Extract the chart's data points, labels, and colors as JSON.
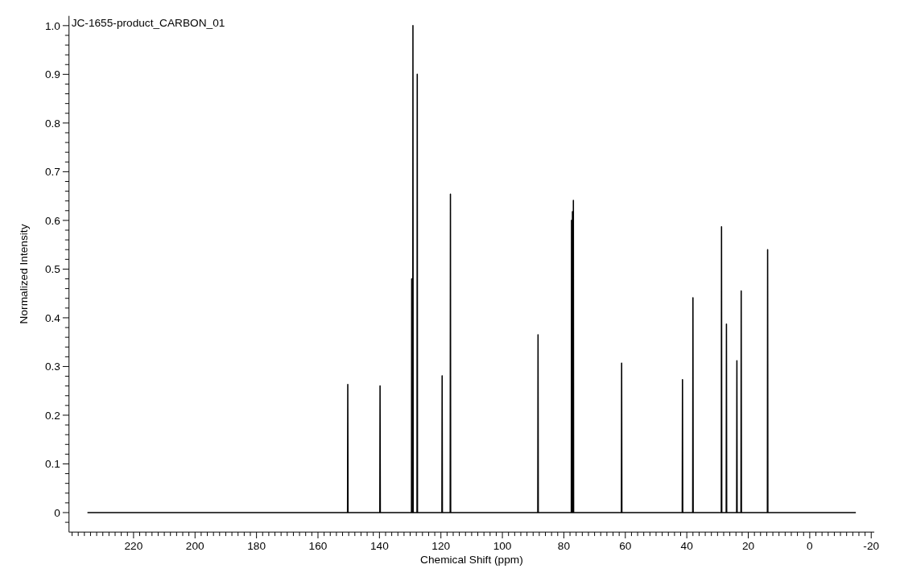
{
  "chart_data": {
    "type": "line",
    "title": "JC-1655-product_CARBON_01",
    "xlabel": "Chemical Shift (ppm)",
    "ylabel": "Normalized Intensity",
    "color": "#000000",
    "x": [
      235,
      150.38,
      150.3,
      150.22,
      139.88,
      139.8,
      139.72,
      129.58,
      129.5,
      129.42,
      129.18,
      129.1,
      129.02,
      127.78,
      127.7,
      127.62,
      119.68,
      119.6,
      119.52,
      116.98,
      116.9,
      116.82,
      88.48,
      88.4,
      88.32,
      77.58,
      77.5,
      77.42,
      77.28,
      77.2,
      77.12,
      76.98,
      76.9,
      76.82,
      61.28,
      61.2,
      61.12,
      41.48,
      41.4,
      41.32,
      38.08,
      38.0,
      37.92,
      28.78,
      28.7,
      28.62,
      27.18,
      27.1,
      27.02,
      23.78,
      23.7,
      23.62,
      22.38,
      22.3,
      22.22,
      13.78,
      13.7,
      13.62,
      -15
    ],
    "values": [
      0,
      0,
      0.263,
      0,
      0,
      0.26,
      0,
      0,
      0.48,
      0,
      0,
      1.0,
      0,
      0,
      0.9,
      0,
      0,
      0.281,
      0,
      0,
      0.654,
      0,
      0,
      0.365,
      0,
      0,
      0.6,
      0,
      0,
      0.618,
      0,
      0,
      0.641,
      0,
      0,
      0.307,
      0,
      0,
      0.273,
      0,
      0,
      0.441,
      0,
      0,
      0.587,
      0,
      0,
      0.387,
      0,
      0,
      0.312,
      0,
      0,
      0.455,
      0,
      0,
      0.54,
      0,
      0
    ],
    "xlim": [
      241,
      -21
    ],
    "xticks": [
      {
        "value": 240,
        "label": null
      },
      {
        "value": 238,
        "label": null
      },
      {
        "value": 236,
        "label": null
      },
      {
        "value": 234,
        "label": null
      },
      {
        "value": 232,
        "label": null
      },
      {
        "value": 230,
        "label": null
      },
      {
        "value": 228,
        "label": null
      },
      {
        "value": 226,
        "label": null
      },
      {
        "value": 224,
        "label": null
      },
      {
        "value": 222,
        "label": null
      },
      220,
      {
        "value": 218,
        "label": null
      },
      {
        "value": 216,
        "label": null
      },
      {
        "value": 214,
        "label": null
      },
      {
        "value": 212,
        "label": null
      },
      {
        "value": 210,
        "label": null
      },
      {
        "value": 208,
        "label": null
      },
      {
        "value": 206,
        "label": null
      },
      {
        "value": 204,
        "label": null
      },
      {
        "value": 202,
        "label": null
      },
      200,
      {
        "value": 198,
        "label": null
      },
      {
        "value": 196,
        "label": null
      },
      {
        "value": 194,
        "label": null
      },
      {
        "value": 192,
        "label": null
      },
      {
        "value": 190,
        "label": null
      },
      {
        "value": 188,
        "label": null
      },
      {
        "value": 186,
        "label": null
      },
      {
        "value": 184,
        "label": null
      },
      {
        "value": 182,
        "label": null
      },
      180,
      {
        "value": 178,
        "label": null
      },
      {
        "value": 176,
        "label": null
      },
      {
        "value": 174,
        "label": null
      },
      {
        "value": 172,
        "label": null
      },
      {
        "value": 170,
        "label": null
      },
      {
        "value": 168,
        "label": null
      },
      {
        "value": 166,
        "label": null
      },
      {
        "value": 164,
        "label": null
      },
      {
        "value": 162,
        "label": null
      },
      160,
      {
        "value": 158,
        "label": null
      },
      {
        "value": 156,
        "label": null
      },
      {
        "value": 154,
        "label": null
      },
      {
        "value": 152,
        "label": null
      },
      {
        "value": 150,
        "label": null
      },
      {
        "value": 148,
        "label": null
      },
      {
        "value": 146,
        "label": null
      },
      {
        "value": 144,
        "label": null
      },
      {
        "value": 142,
        "label": null
      },
      140,
      {
        "value": 138,
        "label": null
      },
      {
        "value": 136,
        "label": null
      },
      {
        "value": 134,
        "label": null
      },
      {
        "value": 132,
        "label": null
      },
      {
        "value": 130,
        "label": null
      },
      {
        "value": 128,
        "label": null
      },
      {
        "value": 126,
        "label": null
      },
      {
        "value": 124,
        "label": null
      },
      {
        "value": 122,
        "label": null
      },
      120,
      {
        "value": 118,
        "label": null
      },
      {
        "value": 116,
        "label": null
      },
      {
        "value": 114,
        "label": null
      },
      {
        "value": 112,
        "label": null
      },
      {
        "value": 110,
        "label": null
      },
      {
        "value": 108,
        "label": null
      },
      {
        "value": 106,
        "label": null
      },
      {
        "value": 104,
        "label": null
      },
      {
        "value": 102,
        "label": null
      },
      100,
      {
        "value": 98,
        "label": null
      },
      {
        "value": 96,
        "label": null
      },
      {
        "value": 94,
        "label": null
      },
      {
        "value": 92,
        "label": null
      },
      {
        "value": 90,
        "label": null
      },
      {
        "value": 88,
        "label": null
      },
      {
        "value": 86,
        "label": null
      },
      {
        "value": 84,
        "label": null
      },
      {
        "value": 82,
        "label": null
      },
      80,
      {
        "value": 78,
        "label": null
      },
      {
        "value": 76,
        "label": null
      },
      {
        "value": 74,
        "label": null
      },
      {
        "value": 72,
        "label": null
      },
      {
        "value": 70,
        "label": null
      },
      {
        "value": 68,
        "label": null
      },
      {
        "value": 66,
        "label": null
      },
      {
        "value": 64,
        "label": null
      },
      {
        "value": 62,
        "label": null
      },
      60,
      {
        "value": 58,
        "label": null
      },
      {
        "value": 56,
        "label": null
      },
      {
        "value": 54,
        "label": null
      },
      {
        "value": 52,
        "label": null
      },
      {
        "value": 50,
        "label": null
      },
      {
        "value": 48,
        "label": null
      },
      {
        "value": 46,
        "label": null
      },
      {
        "value": 44,
        "label": null
      },
      {
        "value": 42,
        "label": null
      },
      40,
      {
        "value": 38,
        "label": null
      },
      {
        "value": 36,
        "label": null
      },
      {
        "value": 34,
        "label": null
      },
      {
        "value": 32,
        "label": null
      },
      {
        "value": 30,
        "label": null
      },
      {
        "value": 28,
        "label": null
      },
      {
        "value": 26,
        "label": null
      },
      {
        "value": 24,
        "label": null
      },
      {
        "value": 22,
        "label": null
      },
      20,
      {
        "value": 18,
        "label": null
      },
      {
        "value": 16,
        "label": null
      },
      {
        "value": 14,
        "label": null
      },
      {
        "value": 12,
        "label": null
      },
      {
        "value": 10,
        "label": null
      },
      {
        "value": 8,
        "label": null
      },
      {
        "value": 6,
        "label": null
      },
      {
        "value": 4,
        "label": null
      },
      {
        "value": 2,
        "label": null
      },
      0,
      {
        "value": -2,
        "label": null
      },
      {
        "value": -4,
        "label": null
      },
      {
        "value": -6,
        "label": null
      },
      {
        "value": -8,
        "label": null
      },
      {
        "value": -10,
        "label": null
      },
      {
        "value": -12,
        "label": null
      },
      {
        "value": -14,
        "label": null
      },
      {
        "value": -16,
        "label": null
      },
      {
        "value": -18,
        "label": null
      },
      -20
    ],
    "ylim": [
      -0.04,
      1.02
    ],
    "yticks": [
      {
        "value": -0.02,
        "label": null
      },
      0,
      {
        "value": 0.02,
        "label": null
      },
      {
        "value": 0.04,
        "label": null
      },
      {
        "value": 0.06,
        "label": null
      },
      {
        "value": 0.08,
        "label": null
      },
      0.1,
      {
        "value": 0.12,
        "label": null
      },
      {
        "value": 0.14,
        "label": null
      },
      {
        "value": 0.16,
        "label": null
      },
      {
        "value": 0.18,
        "label": null
      },
      0.2,
      {
        "value": 0.22,
        "label": null
      },
      {
        "value": 0.24,
        "label": null
      },
      {
        "value": 0.26,
        "label": null
      },
      {
        "value": 0.28,
        "label": null
      },
      0.3,
      {
        "value": 0.32,
        "label": null
      },
      {
        "value": 0.34,
        "label": null
      },
      {
        "value": 0.36,
        "label": null
      },
      {
        "value": 0.38,
        "label": null
      },
      0.4,
      {
        "value": 0.42,
        "label": null
      },
      {
        "value": 0.44,
        "label": null
      },
      {
        "value": 0.46,
        "label": null
      },
      {
        "value": 0.48,
        "label": null
      },
      0.5,
      {
        "value": 0.52,
        "label": null
      },
      {
        "value": 0.54,
        "label": null
      },
      {
        "value": 0.56,
        "label": null
      },
      {
        "value": 0.58,
        "label": null
      },
      0.6,
      {
        "value": 0.62,
        "label": null
      },
      {
        "value": 0.64,
        "label": null
      },
      {
        "value": 0.66,
        "label": null
      },
      {
        "value": 0.68,
        "label": null
      },
      0.7,
      {
        "value": 0.72,
        "label": null
      },
      {
        "value": 0.74,
        "label": null
      },
      {
        "value": 0.76,
        "label": null
      },
      {
        "value": 0.78,
        "label": null
      },
      0.8,
      {
        "value": 0.82,
        "label": null
      },
      {
        "value": 0.84,
        "label": null
      },
      {
        "value": 0.86,
        "label": null
      },
      {
        "value": 0.88,
        "label": null
      },
      0.9,
      {
        "value": 0.92,
        "label": null
      },
      {
        "value": 0.94,
        "label": null
      },
      {
        "value": 0.96,
        "label": null
      },
      {
        "value": 0.98,
        "label": null
      },
      {
        "value": 1,
        "label": "1.0"
      }
    ]
  }
}
